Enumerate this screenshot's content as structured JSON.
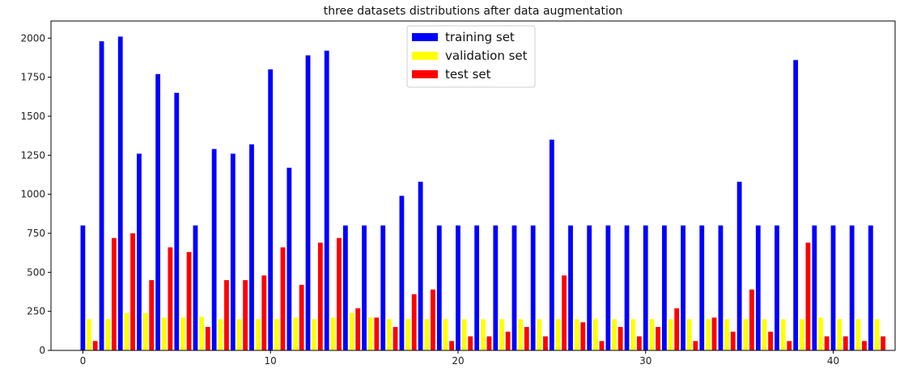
{
  "chart_data": {
    "type": "bar",
    "title": "three datasets distributions after data augmentation",
    "xlabel": "",
    "ylabel": "",
    "x": [
      0,
      1,
      2,
      3,
      4,
      5,
      6,
      7,
      8,
      9,
      10,
      11,
      12,
      13,
      14,
      15,
      16,
      17,
      18,
      19,
      20,
      21,
      22,
      23,
      24,
      25,
      26,
      27,
      28,
      29,
      30,
      31,
      32,
      33,
      34,
      35,
      36,
      37,
      38,
      39,
      40,
      41,
      42
    ],
    "xlim": [
      -1.7,
      43.3
    ],
    "ylim": [
      0,
      2110
    ],
    "xticks": [
      0,
      10,
      20,
      30,
      40
    ],
    "yticks": [
      0,
      250,
      500,
      750,
      1000,
      1250,
      1500,
      1750,
      2000
    ],
    "grid": false,
    "legend_position": "top-center",
    "series": [
      {
        "name": "training set",
        "color": "#0000ff",
        "values": [
          800,
          1980,
          2010,
          1260,
          1770,
          1650,
          800,
          1290,
          1260,
          1320,
          1800,
          1170,
          1890,
          1920,
          800,
          800,
          800,
          990,
          1080,
          800,
          800,
          800,
          800,
          800,
          800,
          1350,
          800,
          800,
          800,
          800,
          800,
          800,
          800,
          800,
          800,
          1080,
          800,
          800,
          1860,
          800,
          800,
          800,
          800
        ]
      },
      {
        "name": "validation set",
        "color": "#ffff00",
        "values": [
          200,
          200,
          240,
          240,
          210,
          210,
          215,
          200,
          200,
          200,
          200,
          210,
          200,
          210,
          240,
          210,
          200,
          200,
          200,
          200,
          200,
          200,
          200,
          200,
          200,
          200,
          200,
          200,
          200,
          200,
          200,
          200,
          200,
          200,
          200,
          200,
          200,
          200,
          200,
          210,
          200,
          200,
          200
        ]
      },
      {
        "name": "test set",
        "color": "#ff0000",
        "values": [
          60,
          720,
          750,
          450,
          660,
          630,
          150,
          450,
          450,
          480,
          660,
          420,
          690,
          720,
          270,
          210,
          150,
          360,
          390,
          60,
          90,
          90,
          120,
          150,
          90,
          480,
          180,
          60,
          150,
          90,
          150,
          270,
          60,
          210,
          120,
          390,
          120,
          60,
          690,
          90,
          90,
          60,
          90
        ]
      }
    ]
  }
}
